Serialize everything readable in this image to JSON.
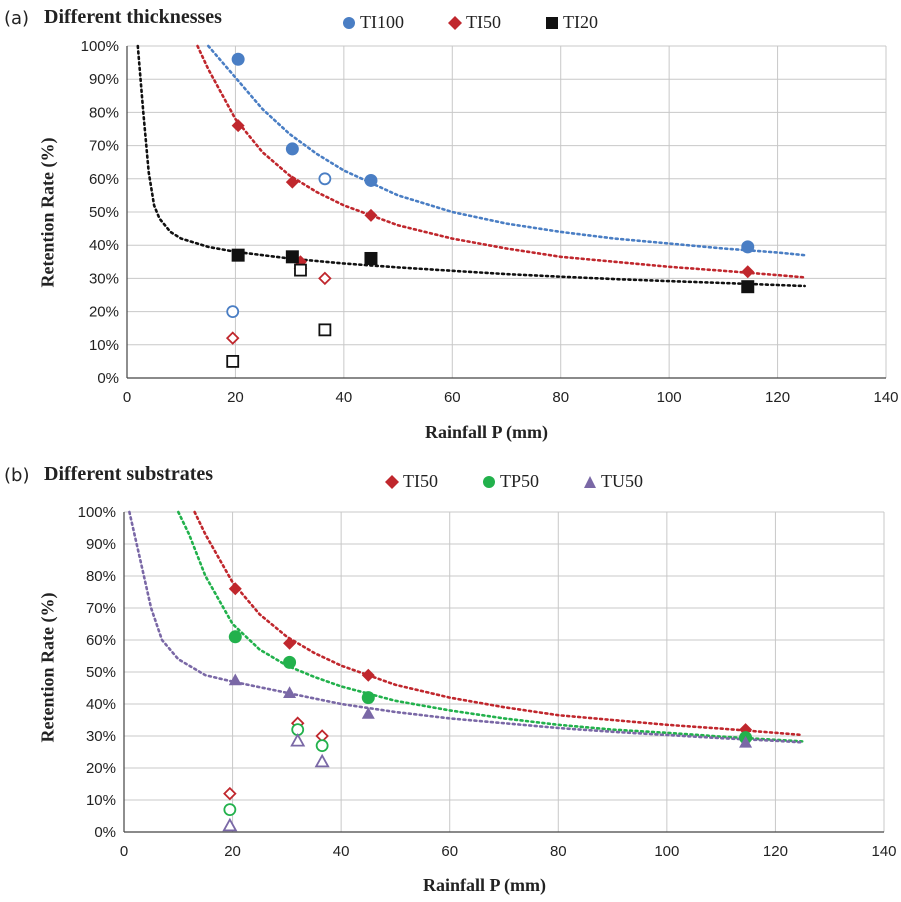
{
  "colors": {
    "TI100": "#4a7ec4",
    "TI50": "#c0272d",
    "TI20": "#111111",
    "TP50": "#22b14c",
    "TU50": "#7a68a6",
    "grid": "#c8c8c8"
  },
  "chart_data": [
    {
      "type": "scatter",
      "panel_label": "(a)",
      "title": "Different thicknesses",
      "xlabel": "Rainfall P (mm)",
      "ylabel": "Retention Rate  (%)",
      "xlim": [
        0,
        140
      ],
      "ylim": [
        0,
        100
      ],
      "xticks": [
        0,
        20,
        40,
        60,
        80,
        100,
        120,
        140
      ],
      "yticks": [
        0,
        10,
        20,
        30,
        40,
        50,
        60,
        70,
        80,
        90,
        100
      ],
      "ytick_labels": [
        "0%",
        "10%",
        "20%",
        "30%",
        "40%",
        "50%",
        "60%",
        "70%",
        "80%",
        "90%",
        "100%"
      ],
      "grid": true,
      "legend_position": "top",
      "series": [
        {
          "name": "TI100",
          "marker": "circle",
          "color_key": "TI100",
          "filled": [
            [
              20.5,
              96
            ],
            [
              30.5,
              69
            ],
            [
              45,
              59.5
            ],
            [
              114.5,
              39.5
            ]
          ],
          "open": [
            [
              36.5,
              60
            ],
            [
              19.5,
              20
            ]
          ],
          "trend": [
            [
              15,
              100
            ],
            [
              20,
              90.5
            ],
            [
              25,
              81
            ],
            [
              30,
              73.5
            ],
            [
              35,
              67.5
            ],
            [
              40,
              62.5
            ],
            [
              50,
              55
            ],
            [
              60,
              50
            ],
            [
              70,
              46.5
            ],
            [
              80,
              44
            ],
            [
              90,
              42
            ],
            [
              100,
              40.5
            ],
            [
              110,
              39
            ],
            [
              120,
              37.8
            ],
            [
              125,
              37
            ]
          ]
        },
        {
          "name": "TI50",
          "marker": "diamond",
          "color_key": "TI50",
          "filled": [
            [
              20.5,
              76
            ],
            [
              30.5,
              59
            ],
            [
              32,
              35
            ],
            [
              45,
              49
            ],
            [
              114.5,
              32
            ]
          ],
          "open": [
            [
              32,
              33
            ],
            [
              36.5,
              30
            ],
            [
              19.5,
              12
            ]
          ],
          "trend": [
            [
              13,
              100
            ],
            [
              15,
              93
            ],
            [
              20,
              78
            ],
            [
              25,
              68
            ],
            [
              30,
              61
            ],
            [
              35,
              56
            ],
            [
              40,
              52
            ],
            [
              50,
              46
            ],
            [
              60,
              42
            ],
            [
              70,
              39
            ],
            [
              80,
              36.5
            ],
            [
              90,
              35
            ],
            [
              100,
              33.5
            ],
            [
              110,
              32.3
            ],
            [
              120,
              31
            ],
            [
              125,
              30.3
            ]
          ]
        },
        {
          "name": "TI20",
          "marker": "square",
          "color_key": "TI20",
          "filled": [
            [
              20.5,
              37
            ],
            [
              30.5,
              36.5
            ],
            [
              45,
              36
            ],
            [
              114.5,
              27.5
            ]
          ],
          "open": [
            [
              32,
              32.5
            ],
            [
              36.5,
              14.5
            ],
            [
              19.5,
              5
            ]
          ],
          "trend": [
            [
              2,
              100
            ],
            [
              3,
              80
            ],
            [
              4,
              62
            ],
            [
              5,
              52
            ],
            [
              6,
              48
            ],
            [
              8,
              44
            ],
            [
              10,
              42
            ],
            [
              15,
              39.5
            ],
            [
              20,
              38
            ],
            [
              30,
              36
            ],
            [
              40,
              34.5
            ],
            [
              50,
              33.3
            ],
            [
              60,
              32.3
            ],
            [
              70,
              31.3
            ],
            [
              80,
              30.5
            ],
            [
              90,
              29.8
            ],
            [
              100,
              29.2
            ],
            [
              110,
              28.6
            ],
            [
              120,
              28
            ],
            [
              125,
              27.7
            ]
          ]
        }
      ]
    },
    {
      "type": "scatter",
      "panel_label": "(b)",
      "title": "Different substrates",
      "xlabel": "Rainfall P (mm)",
      "ylabel": "Retention Rate  (%)",
      "xlim": [
        0,
        140
      ],
      "ylim": [
        0,
        100
      ],
      "xticks": [
        0,
        20,
        40,
        60,
        80,
        100,
        120,
        140
      ],
      "yticks": [
        0,
        10,
        20,
        30,
        40,
        50,
        60,
        70,
        80,
        90,
        100
      ],
      "ytick_labels": [
        "0%",
        "10%",
        "20%",
        "30%",
        "40%",
        "50%",
        "60%",
        "70%",
        "80%",
        "90%",
        "100%"
      ],
      "grid": true,
      "legend_position": "top",
      "series": [
        {
          "name": "TI50",
          "marker": "diamond",
          "color_key": "TI50",
          "filled": [
            [
              20.5,
              76
            ],
            [
              30.5,
              59
            ],
            [
              45,
              49
            ],
            [
              114.5,
              32
            ]
          ],
          "open": [
            [
              32,
              34
            ],
            [
              36.5,
              30
            ],
            [
              19.5,
              12
            ]
          ],
          "trend": [
            [
              13,
              100
            ],
            [
              15,
              93
            ],
            [
              20,
              78
            ],
            [
              25,
              68
            ],
            [
              30,
              61
            ],
            [
              35,
              56
            ],
            [
              40,
              52
            ],
            [
              50,
              46
            ],
            [
              60,
              42
            ],
            [
              70,
              39
            ],
            [
              80,
              36.5
            ],
            [
              90,
              35
            ],
            [
              100,
              33.5
            ],
            [
              110,
              32.3
            ],
            [
              120,
              31
            ],
            [
              125,
              30.3
            ]
          ]
        },
        {
          "name": "TP50",
          "marker": "circle",
          "color_key": "TP50",
          "filled": [
            [
              20.5,
              61
            ],
            [
              30.5,
              53
            ],
            [
              45,
              42
            ],
            [
              114.5,
              29.5
            ]
          ],
          "open": [
            [
              32,
              32
            ],
            [
              36.5,
              27
            ],
            [
              19.5,
              7
            ]
          ],
          "trend": [
            [
              10,
              100
            ],
            [
              12,
              93
            ],
            [
              15,
              80
            ],
            [
              20,
              65
            ],
            [
              25,
              57
            ],
            [
              30,
              52
            ],
            [
              35,
              48.5
            ],
            [
              40,
              45.5
            ],
            [
              50,
              41
            ],
            [
              60,
              38
            ],
            [
              70,
              35.5
            ],
            [
              80,
              33.5
            ],
            [
              90,
              32
            ],
            [
              100,
              31
            ],
            [
              110,
              29.8
            ],
            [
              120,
              28.8
            ],
            [
              125,
              28.3
            ]
          ]
        },
        {
          "name": "TU50",
          "marker": "triangle",
          "color_key": "TU50",
          "filled": [
            [
              20.5,
              47.5
            ],
            [
              30.5,
              43.5
            ],
            [
              45,
              37
            ],
            [
              114.5,
              28
            ]
          ],
          "open": [
            [
              32,
              28.5
            ],
            [
              36.5,
              22
            ],
            [
              19.5,
              2
            ]
          ],
          "trend": [
            [
              1,
              100
            ],
            [
              3,
              85
            ],
            [
              5,
              70
            ],
            [
              7,
              60
            ],
            [
              10,
              54
            ],
            [
              15,
              49
            ],
            [
              20,
              47
            ],
            [
              30,
              43.5
            ],
            [
              40,
              40
            ],
            [
              50,
              37.5
            ],
            [
              60,
              35.5
            ],
            [
              70,
              34
            ],
            [
              80,
              32.5
            ],
            [
              90,
              31.3
            ],
            [
              100,
              30.3
            ],
            [
              110,
              29.3
            ],
            [
              120,
              28.5
            ],
            [
              125,
              28
            ]
          ]
        }
      ]
    }
  ]
}
